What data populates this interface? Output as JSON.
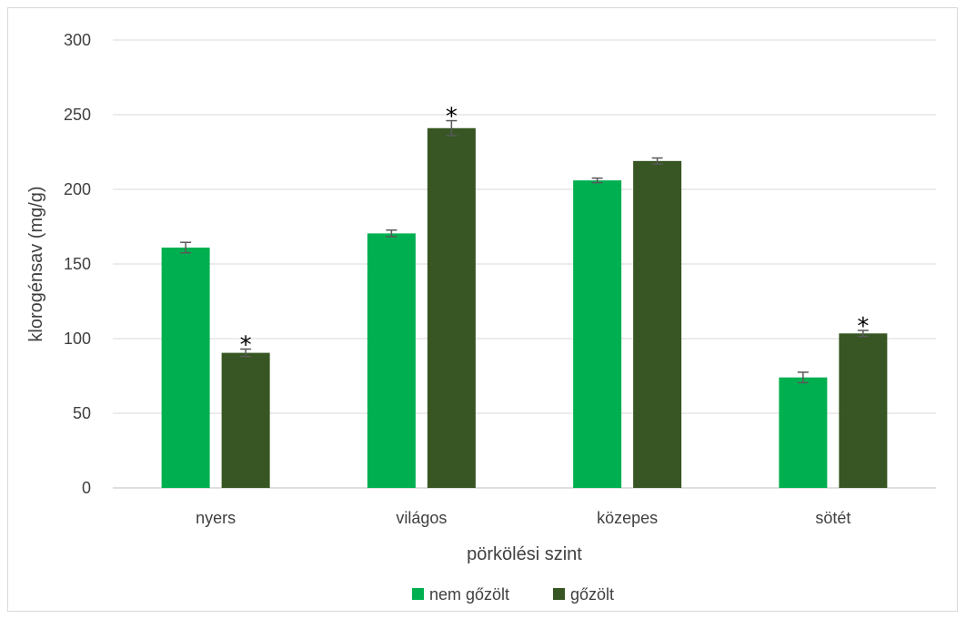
{
  "chart_data": {
    "type": "bar",
    "title": "",
    "xlabel": "pörkölési szint",
    "ylabel": "klorogénsav (mg/g)",
    "ylim": [
      0,
      300
    ],
    "yticks": [
      0,
      50,
      100,
      150,
      200,
      250,
      300
    ],
    "grid": true,
    "legend_position": "bottom",
    "categories": [
      "nyers",
      "világos",
      "közepes",
      "sötét"
    ],
    "series": [
      {
        "name": "nem gőzölt",
        "color": "#00b050",
        "values": [
          161,
          170.5,
          206,
          74
        ],
        "errors": [
          3.5,
          2.2,
          1.5,
          3.5
        ],
        "significance": [
          "",
          "",
          "",
          ""
        ]
      },
      {
        "name": "gőzölt",
        "color": "#375623",
        "values": [
          90.5,
          241,
          219,
          103.5
        ],
        "errors": [
          2.5,
          5,
          2,
          2
        ],
        "significance": [
          "*",
          "*",
          "",
          "*"
        ]
      }
    ]
  }
}
